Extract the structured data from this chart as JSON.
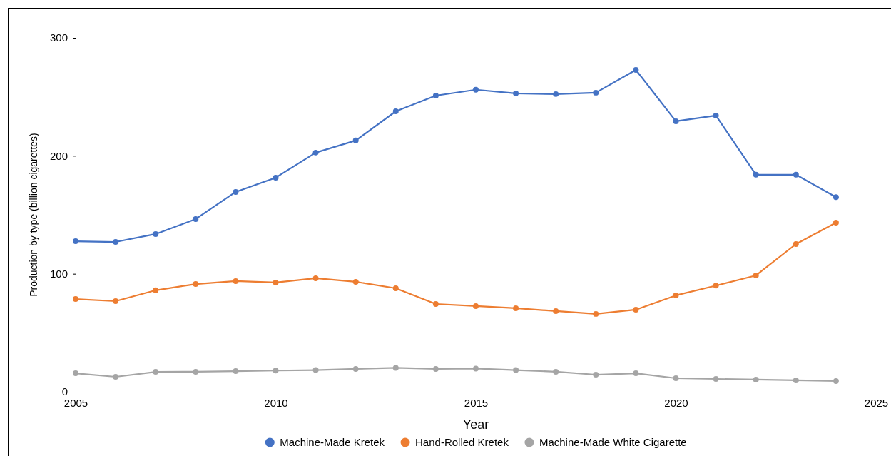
{
  "chart_data": {
    "type": "line",
    "xlabel": "Year",
    "ylabel": "Production by type (billion cigarettes)",
    "x": [
      2005,
      2006,
      2007,
      2008,
      2009,
      2010,
      2011,
      2012,
      2013,
      2014,
      2015,
      2016,
      2017,
      2018,
      2019,
      2020,
      2021,
      2022,
      2023,
      2024
    ],
    "series": [
      {
        "name": "Machine-Made Kretek",
        "color": "#4472c4",
        "values": [
          127.6,
          127,
          133.7,
          146.4,
          169.4,
          181.5,
          202.7,
          213,
          237.7,
          251,
          256,
          252.9,
          252.3,
          253.5,
          272.8,
          229.3,
          234.1,
          184,
          184,
          165
        ]
      },
      {
        "name": "Hand-Rolled Kretek",
        "color": "#ed7d31",
        "values": [
          78.6,
          76.8,
          86,
          91.3,
          93.8,
          92.6,
          96.2,
          93.2,
          87.7,
          74.4,
          72.6,
          70.8,
          68.4,
          66,
          69.6,
          81.7,
          90,
          98.6,
          125.2,
          143.4
        ]
      },
      {
        "name": "Machine-Made White Cigarette",
        "color": "#a5a5a5",
        "values": [
          15.7,
          12.7,
          16.9,
          17,
          17.5,
          18,
          18.4,
          19.4,
          20.3,
          19.4,
          19.7,
          18.4,
          17,
          14.5,
          15.7,
          11.5,
          10.9,
          10.3,
          9.7,
          9.1
        ]
      }
    ],
    "xlim": [
      2005,
      2025
    ],
    "xticks": [
      2005,
      2010,
      2015,
      2020,
      2025
    ],
    "ylim": [
      0,
      300
    ],
    "yticks": [
      0,
      100,
      200,
      300
    ],
    "grid": false,
    "legend": "bottom",
    "marker": "circle",
    "line_style": "solid"
  }
}
